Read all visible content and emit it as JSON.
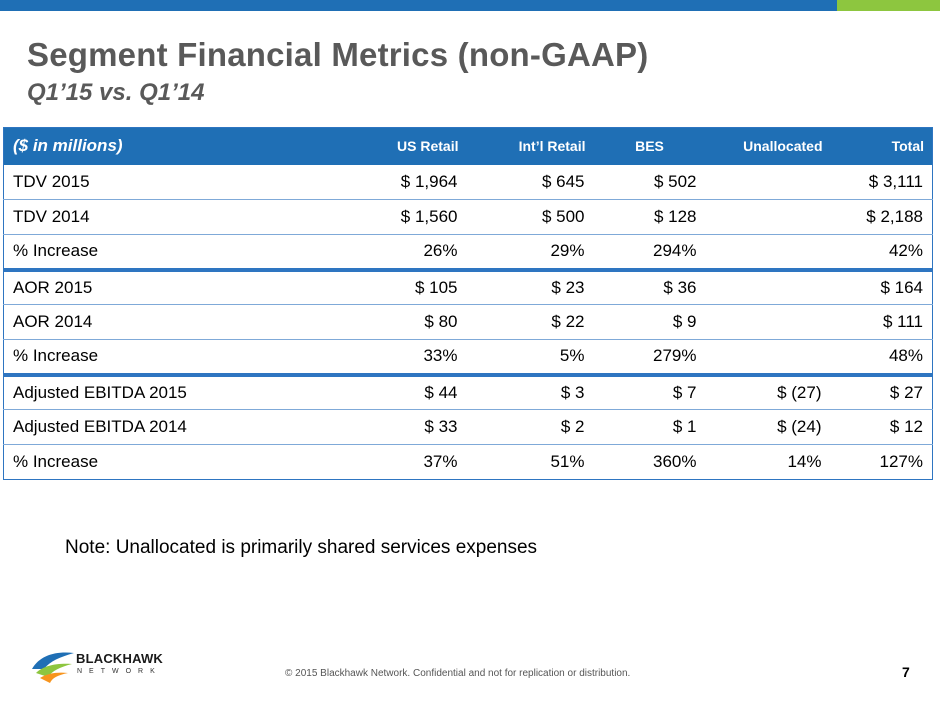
{
  "slide": {
    "title": "Segment Financial Metrics (non-GAAP)",
    "subtitle": "Q1’15 vs. Q1’14",
    "note": "Note:  Unallocated is primarily shared services expenses",
    "footer": "© 2015 Blackhawk Network. Confidential and not for replication or distribution.",
    "page_number": "7",
    "logo": {
      "brand": "BLACKHAWK",
      "sub": "NETWORK"
    },
    "colors": {
      "primary": "#1f6fb5",
      "accent": "#8dc63f",
      "text": "#595959"
    }
  },
  "table": {
    "headers": [
      "($ in millions)",
      "US Retail",
      "Int’l Retail",
      "BES",
      "Unallocated",
      "Total"
    ],
    "rows": [
      [
        "TDV 2015",
        "$ 1,964",
        "$   645",
        "$   502",
        "",
        "$  3,111"
      ],
      [
        "TDV 2014",
        "$ 1,560",
        "$   500",
        "$   128",
        "",
        "$ 2,188"
      ],
      [
        "% Increase",
        "26%",
        "29%",
        "294%",
        "",
        "42%"
      ],
      [
        "AOR 2015",
        "$ 105",
        "$   23",
        "$   36",
        "",
        "$ 164"
      ],
      [
        "AOR 2014",
        "$   80",
        "$   22",
        "$     9",
        "",
        "$ 111"
      ],
      [
        "% Increase",
        "33%",
        "5%",
        "279%",
        "",
        "48%"
      ],
      [
        "Adjusted EBITDA  2015",
        "$    44",
        "$     3",
        "$     7",
        "$   (27)",
        "$   27"
      ],
      [
        "Adjusted EBITDA  2014",
        "$    33",
        "$     2",
        "$     1",
        "$   (24)",
        "$   12"
      ],
      [
        "% Increase",
        "37%",
        "51%",
        "360%",
        "14%",
        "127%"
      ]
    ]
  }
}
